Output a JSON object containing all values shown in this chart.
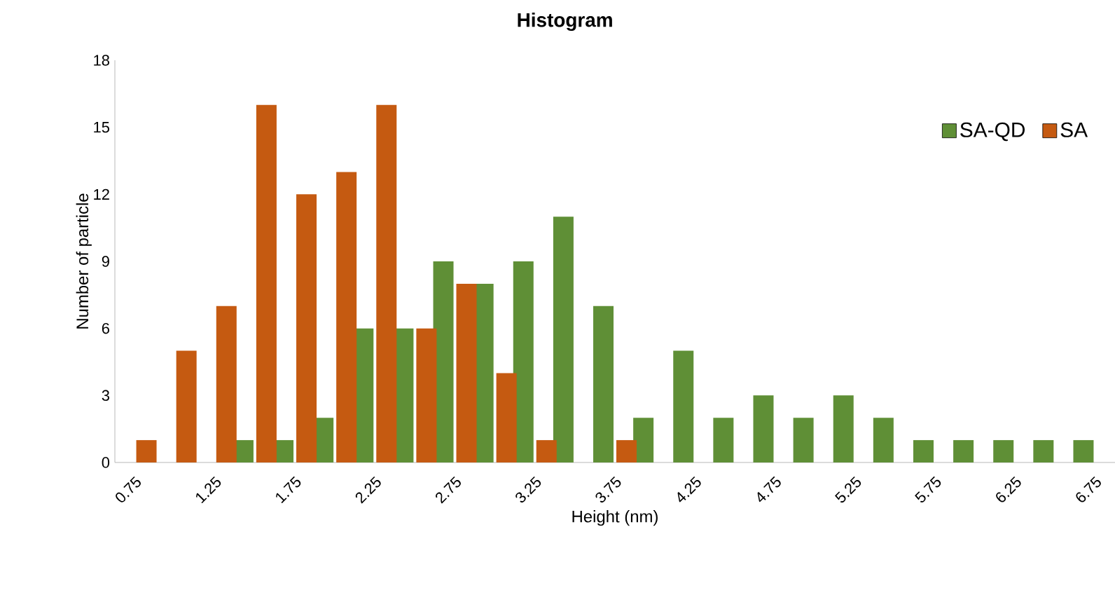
{
  "chart_data": {
    "type": "bar",
    "title": "Histogram",
    "xlabel": "Height (nm)",
    "ylabel": "Number of particle",
    "categories": [
      "0.75",
      null,
      "1.25",
      null,
      "1.75",
      null,
      "2.25",
      null,
      "2.75",
      null,
      "3.25",
      null,
      "3.75",
      null,
      "4.25",
      null,
      "4.75",
      null,
      "5.25",
      null,
      "5.75",
      null,
      "6.25",
      null,
      "6.75"
    ],
    "series": [
      {
        "name": "SA-QD",
        "color": "#5f8f36",
        "values": [
          0,
          0,
          0,
          1,
          1,
          2,
          6,
          6,
          9,
          8,
          9,
          11,
          7,
          2,
          5,
          2,
          3,
          2,
          3,
          2,
          1,
          1,
          1,
          1,
          1
        ]
      },
      {
        "name": "SA",
        "color": "#c55a11",
        "values": [
          1,
          5,
          7,
          16,
          12,
          13,
          16,
          6,
          8,
          4,
          1,
          0,
          1,
          0,
          0,
          0,
          0,
          0,
          0,
          0,
          0,
          0,
          0,
          0,
          0
        ]
      }
    ],
    "ylim": [
      0,
      18
    ],
    "yticks": [
      0,
      3,
      6,
      9,
      12,
      15,
      18
    ],
    "grid": false,
    "legend": "top right"
  }
}
